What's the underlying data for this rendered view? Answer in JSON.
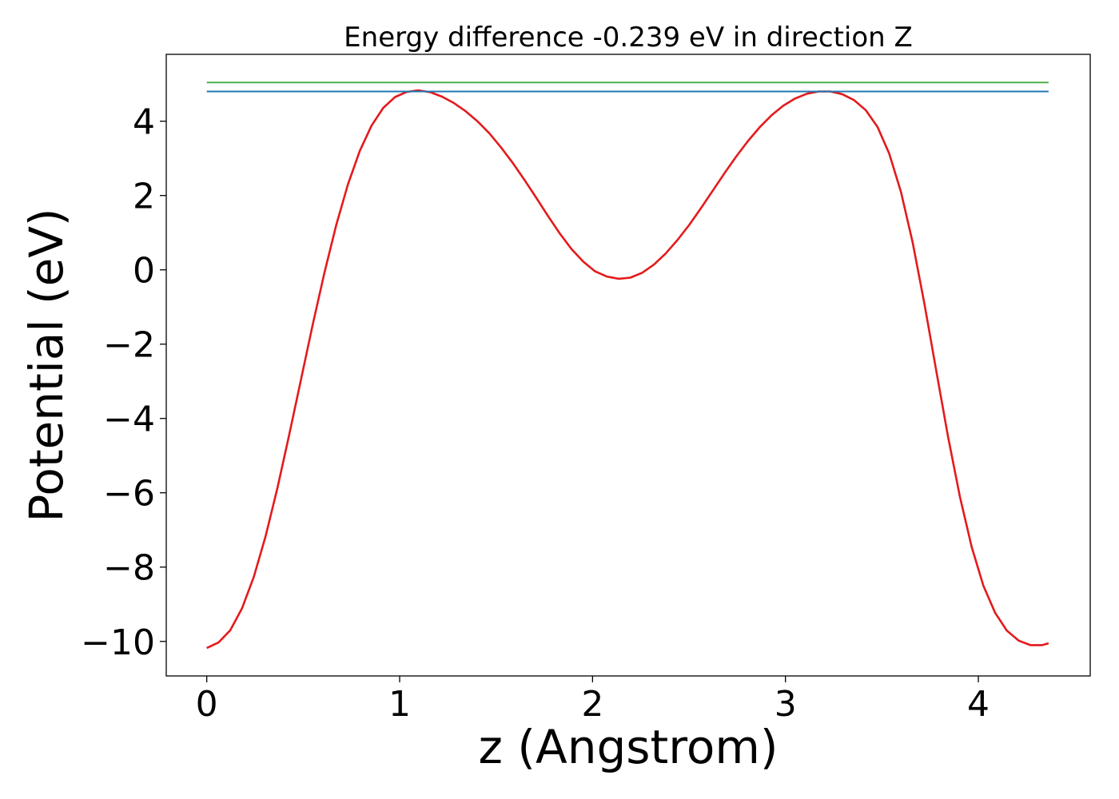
{
  "chart_data": {
    "type": "line",
    "title": "Energy difference -0.239 eV in direction Z",
    "xlabel": "z (Angstrom)",
    "ylabel": "Potential (eV)",
    "xlim": [
      -0.21,
      4.58
    ],
    "ylim": [
      -10.93,
      5.8
    ],
    "xticks": [
      0,
      1,
      2,
      3,
      4
    ],
    "yticks": [
      4,
      2,
      0,
      -2,
      -4,
      -6,
      -8,
      -10
    ],
    "grid": false,
    "legend": "none",
    "series": [
      {
        "color": "#e41a1c",
        "x": [
          0.0,
          0.061,
          0.122,
          0.183,
          0.244,
          0.305,
          0.366,
          0.427,
          0.488,
          0.549,
          0.61,
          0.671,
          0.732,
          0.793,
          0.854,
          0.915,
          0.976,
          1.037,
          1.098,
          1.159,
          1.22,
          1.281,
          1.342,
          1.403,
          1.464,
          1.525,
          1.586,
          1.647,
          1.708,
          1.769,
          1.83,
          1.891,
          1.952,
          2.013,
          2.074,
          2.135,
          2.196,
          2.257,
          2.318,
          2.379,
          2.44,
          2.501,
          2.562,
          2.623,
          2.684,
          2.745,
          2.806,
          2.867,
          2.928,
          2.989,
          3.05,
          3.111,
          3.172,
          3.233,
          3.294,
          3.355,
          3.416,
          3.477,
          3.538,
          3.599,
          3.66,
          3.721,
          3.782,
          3.843,
          3.904,
          3.965,
          4.026,
          4.087,
          4.148,
          4.209,
          4.27,
          4.331,
          4.364
        ],
        "y": [
          -10.18,
          -10.03,
          -9.7,
          -9.11,
          -8.26,
          -7.17,
          -5.88,
          -4.45,
          -2.96,
          -1.48,
          -0.08,
          1.2,
          2.3,
          3.2,
          3.88,
          4.36,
          4.65,
          4.79,
          4.83,
          4.78,
          4.66,
          4.49,
          4.27,
          4.0,
          3.68,
          3.3,
          2.88,
          2.42,
          1.94,
          1.45,
          0.98,
          0.56,
          0.22,
          -0.04,
          -0.18,
          -0.24,
          -0.21,
          -0.08,
          0.14,
          0.44,
          0.8,
          1.21,
          1.66,
          2.13,
          2.6,
          3.05,
          3.47,
          3.84,
          4.16,
          4.42,
          4.61,
          4.74,
          4.8,
          4.8,
          4.73,
          4.57,
          4.3,
          3.85,
          3.13,
          2.1,
          0.72,
          -0.93,
          -2.72,
          -4.49,
          -6.1,
          -7.45,
          -8.5,
          -9.23,
          -9.71,
          -9.98,
          -10.1,
          -10.1,
          -10.05
        ]
      },
      {
        "color": "#1f77b4",
        "x": [
          0.0,
          4.364
        ],
        "y": [
          4.8,
          4.8
        ]
      },
      {
        "color": "#4daf4a",
        "x": [
          0.0,
          4.364
        ],
        "y": [
          5.04,
          5.04
        ]
      }
    ]
  }
}
